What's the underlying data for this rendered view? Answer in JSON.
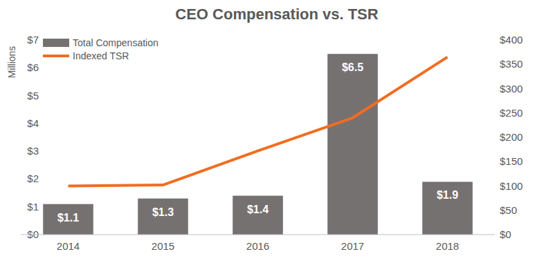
{
  "chart_data": {
    "type": "bar",
    "title": "CEO Compensation vs. TSR",
    "y_label": "Millions",
    "categories": [
      "2014",
      "2015",
      "2016",
      "2017",
      "2018"
    ],
    "series": [
      {
        "name": "Total Compensation",
        "type": "bar",
        "color": "#767171",
        "values": [
          1.1,
          1.3,
          1.4,
          6.5,
          1.9
        ],
        "value_labels": [
          "$1.1",
          "$1.3",
          "$1.4",
          "$6.5",
          "$1.9"
        ]
      },
      {
        "name": "Indexed TSR",
        "type": "line",
        "axis": "y2",
        "color": "#f26d21",
        "values": [
          100,
          102,
          172,
          240,
          365
        ]
      }
    ],
    "ylim": [
      0,
      7
    ],
    "yticks": [
      {
        "value": 0,
        "label": "$0"
      },
      {
        "value": 1,
        "label": "$1"
      },
      {
        "value": 2,
        "label": "$2"
      },
      {
        "value": 3,
        "label": "$3"
      },
      {
        "value": 4,
        "label": "$4"
      },
      {
        "value": 5,
        "label": "$5"
      },
      {
        "value": 6,
        "label": "$6"
      },
      {
        "value": 7,
        "label": "$7"
      }
    ],
    "y2lim": [
      0,
      400
    ],
    "y2ticks": [
      {
        "value": 0,
        "label": "$0"
      },
      {
        "value": 50,
        "label": "$50"
      },
      {
        "value": 100,
        "label": "$100"
      },
      {
        "value": 150,
        "label": "$150"
      },
      {
        "value": 200,
        "label": "$200"
      },
      {
        "value": 250,
        "label": "$250"
      },
      {
        "value": 300,
        "label": "$300"
      },
      {
        "value": 350,
        "label": "$350"
      },
      {
        "value": 400,
        "label": "$400"
      }
    ],
    "data_labels": true,
    "grid": false,
    "legend": "upper left"
  }
}
